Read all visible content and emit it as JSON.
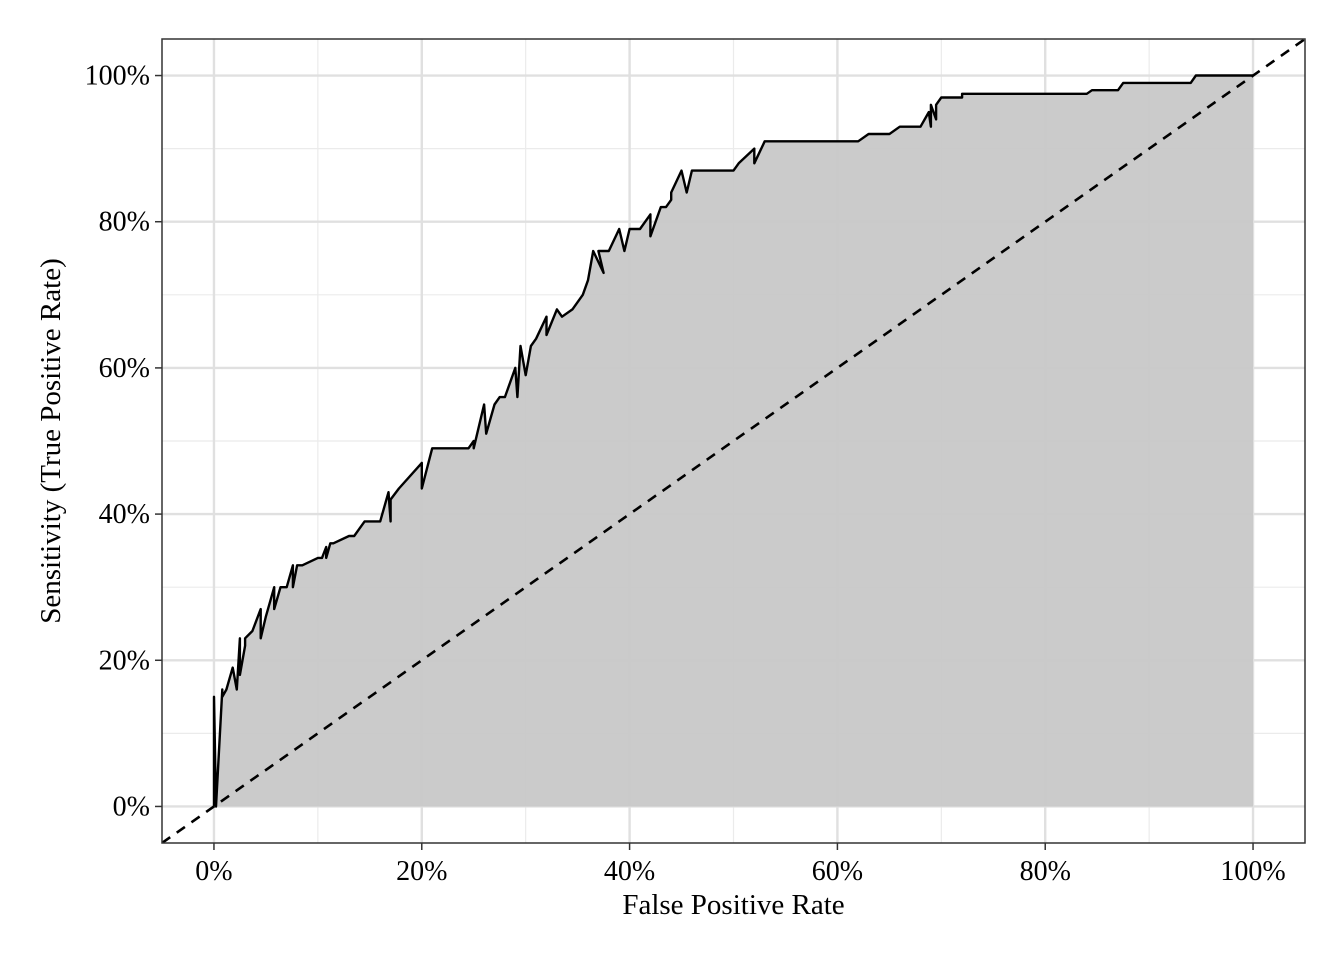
{
  "chart_data": {
    "type": "area",
    "title": "",
    "xlabel": "False Positive Rate",
    "ylabel": "Sensitivity (True Positive Rate)",
    "xlim": [
      -0.05,
      1.05
    ],
    "ylim": [
      -0.05,
      1.05
    ],
    "x_ticks": [
      0,
      0.2,
      0.4,
      0.6,
      0.8,
      1.0
    ],
    "x_tick_labels": [
      "0%",
      "20%",
      "40%",
      "60%",
      "80%",
      "100%"
    ],
    "y_ticks": [
      0,
      0.2,
      0.4,
      0.6,
      0.8,
      1.0
    ],
    "y_tick_labels": [
      "0%",
      "20%",
      "40%",
      "60%",
      "80%",
      "100%"
    ],
    "grid": true,
    "reference_line": {
      "x": [
        -0.05,
        1.05
      ],
      "y": [
        -0.05,
        1.05
      ],
      "style": "dashed"
    },
    "fill_color": "#c8c8c8",
    "line_color": "#000000",
    "series": [
      {
        "x": [
          0,
          0,
          0.002,
          0.008,
          0.008,
          0.012,
          0.018,
          0.022,
          0.025,
          0.025,
          0.03,
          0.03,
          0.037,
          0.045,
          0.045,
          0.05,
          0.058,
          0.058,
          0.064,
          0.07,
          0.076,
          0.076,
          0.08,
          0.08,
          0.085,
          0.1,
          0.104,
          0.108,
          0.108,
          0.112,
          0.115,
          0.13,
          0.135,
          0.14,
          0.145,
          0.15,
          0.16,
          0.168,
          0.17,
          0.17,
          0.178,
          0.2,
          0.2,
          0.21,
          0.245,
          0.25,
          0.25,
          0.26,
          0.262,
          0.27,
          0.275,
          0.28,
          0.29,
          0.292,
          0.295,
          0.3,
          0.305,
          0.31,
          0.32,
          0.32,
          0.33,
          0.335,
          0.345,
          0.355,
          0.36,
          0.365,
          0.375,
          0.37,
          0.38,
          0.39,
          0.395,
          0.4,
          0.41,
          0.42,
          0.42,
          0.43,
          0.435,
          0.44,
          0.44,
          0.45,
          0.455,
          0.46,
          0.47,
          0.5,
          0.505,
          0.52,
          0.52,
          0.53,
          0.54,
          0.62,
          0.63,
          0.65,
          0.66,
          0.68,
          0.688,
          0.69,
          0.69,
          0.695,
          0.695,
          0.7,
          0.71,
          0.72,
          0.72,
          0.84,
          0.845,
          0.85,
          0.87,
          0.875,
          0.88,
          0.94,
          0.945,
          0.95,
          1.0
        ],
        "y": [
          0,
          0.15,
          0.0,
          0.16,
          0.15,
          0.16,
          0.19,
          0.16,
          0.23,
          0.18,
          0.22,
          0.23,
          0.24,
          0.27,
          0.23,
          0.26,
          0.3,
          0.27,
          0.3,
          0.3,
          0.33,
          0.3,
          0.33,
          0.33,
          0.33,
          0.34,
          0.34,
          0.355,
          0.34,
          0.36,
          0.36,
          0.37,
          0.37,
          0.38,
          0.39,
          0.39,
          0.39,
          0.43,
          0.39,
          0.42,
          0.435,
          0.47,
          0.435,
          0.49,
          0.49,
          0.5,
          0.49,
          0.55,
          0.51,
          0.55,
          0.56,
          0.56,
          0.6,
          0.56,
          0.63,
          0.59,
          0.63,
          0.64,
          0.67,
          0.645,
          0.68,
          0.67,
          0.68,
          0.7,
          0.72,
          0.76,
          0.73,
          0.76,
          0.76,
          0.79,
          0.76,
          0.79,
          0.79,
          0.81,
          0.78,
          0.82,
          0.82,
          0.83,
          0.84,
          0.87,
          0.84,
          0.87,
          0.87,
          0.87,
          0.88,
          0.9,
          0.88,
          0.91,
          0.91,
          0.91,
          0.92,
          0.92,
          0.93,
          0.93,
          0.95,
          0.93,
          0.96,
          0.94,
          0.96,
          0.97,
          0.97,
          0.97,
          0.975,
          0.975,
          0.98,
          0.98,
          0.98,
          0.99,
          0.99,
          0.99,
          1.0,
          1.0,
          1.0
        ]
      }
    ]
  }
}
